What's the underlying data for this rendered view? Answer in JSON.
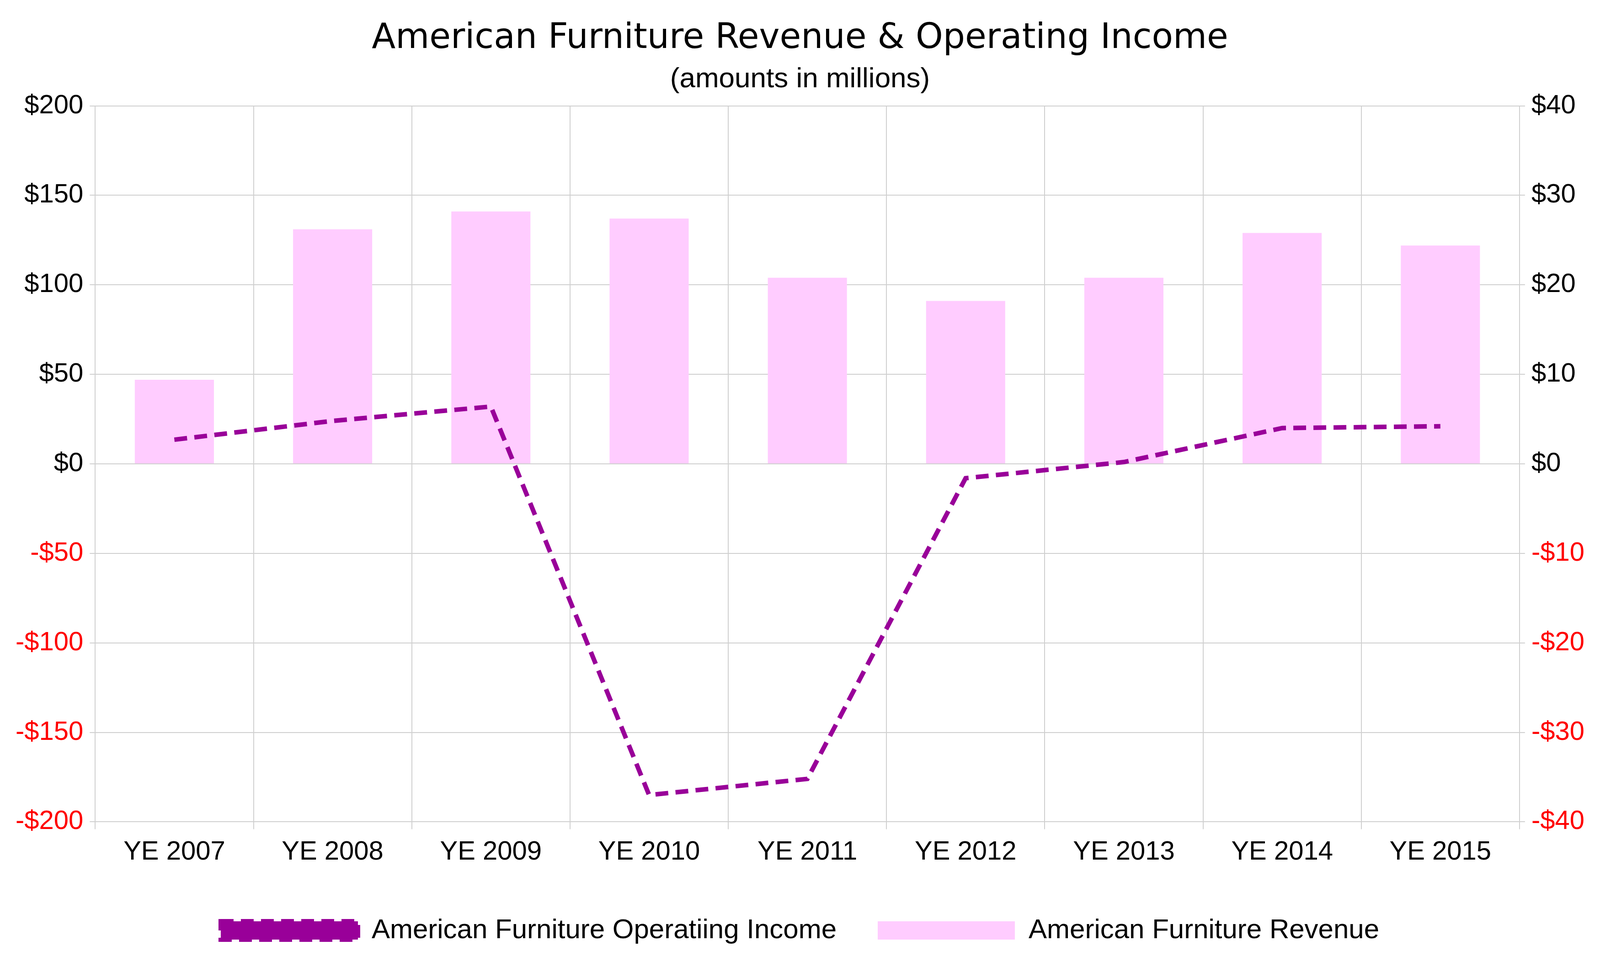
{
  "chart_data": {
    "type": "bar",
    "title": "American Furniture Revenue & Operating Income",
    "subtitle": "(amounts in millions)",
    "categories": [
      "YE 2007",
      "YE 2008",
      "YE 2009",
      "YE 2010",
      "YE 2011",
      "YE 2012",
      "YE 2013",
      "YE 2014",
      "YE 2015"
    ],
    "series": [
      {
        "name": "American Furniture Revenue",
        "type": "bar",
        "color": "#ffccff",
        "values": [
          47,
          131,
          141,
          137,
          104,
          91,
          104,
          129,
          122
        ]
      },
      {
        "name": "American Furniture Operatiing Income",
        "type": "line",
        "axis": "y2",
        "color": "#990099",
        "line_style": "dashed",
        "values": [
          2.7,
          4.8,
          6.4,
          -37,
          -35.2,
          -1.6,
          0.2,
          4.0,
          4.2
        ]
      }
    ],
    "ylim": [
      -200,
      200
    ],
    "yticks": [
      {
        "value": -200,
        "label": "-$200"
      },
      {
        "value": -150,
        "label": "-$150"
      },
      {
        "value": -100,
        "label": "-$100"
      },
      {
        "value": -50,
        "label": "-$50"
      },
      {
        "value": 0,
        "label": "$0"
      },
      {
        "value": 50,
        "label": "$50"
      },
      {
        "value": 100,
        "label": "$100"
      },
      {
        "value": 150,
        "label": "$150"
      },
      {
        "value": 200,
        "label": "$200"
      }
    ],
    "y2lim": [
      -40,
      40
    ],
    "y2ticks": [
      {
        "value": -40,
        "label": "-$40"
      },
      {
        "value": -30,
        "label": "-$30"
      },
      {
        "value": -20,
        "label": "-$20"
      },
      {
        "value": -10,
        "label": "-$10"
      },
      {
        "value": 0,
        "label": "$0"
      },
      {
        "value": 10,
        "label": "$10"
      },
      {
        "value": 20,
        "label": "$20"
      },
      {
        "value": 30,
        "label": "$30"
      },
      {
        "value": 40,
        "label": "$40"
      }
    ],
    "grid": true,
    "legend": "bottom"
  }
}
